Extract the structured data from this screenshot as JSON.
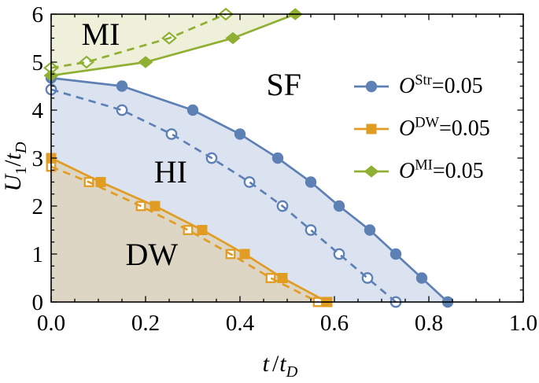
{
  "chart_data": {
    "type": "line",
    "title": "",
    "xlabel": "t/t_D",
    "ylabel": "U_1/t_D",
    "xlim": [
      0,
      1
    ],
    "ylim": [
      0,
      6
    ],
    "grid": false,
    "legend_position": "right-inside",
    "x_ticks": {
      "major": [
        0,
        0.2,
        0.4,
        0.6,
        0.8,
        1.0
      ],
      "labels": [
        "0.0",
        "0.2",
        "0.4",
        "0.6",
        "0.8",
        "1.0"
      ],
      "minor_step": 0.05
    },
    "y_ticks": {
      "major": [
        0,
        1,
        2,
        3,
        4,
        5,
        6
      ],
      "labels": [
        "0",
        "1",
        "2",
        "3",
        "4",
        "5",
        "6"
      ],
      "minor_step": 0.25
    },
    "series": [
      {
        "id": "str-solid",
        "name": "O^Str=0.05 (solid)",
        "color": "#5E81B5",
        "line": "solid",
        "marker": "circle",
        "marker_filled": true,
        "points": [
          [
            0,
            4.67
          ],
          [
            0.15,
            4.5
          ],
          [
            0.3,
            4.0
          ],
          [
            0.4,
            3.5
          ],
          [
            0.48,
            3.0
          ],
          [
            0.55,
            2.5
          ],
          [
            0.61,
            2.0
          ],
          [
            0.675,
            1.5
          ],
          [
            0.73,
            1.0
          ],
          [
            0.785,
            0.5
          ],
          [
            0.84,
            0
          ]
        ]
      },
      {
        "id": "str-dashed",
        "name": "O^Str=0.05 (dashed)",
        "color": "#5E81B5",
        "line": "dashed",
        "marker": "circle",
        "marker_filled": false,
        "points": [
          [
            0,
            4.43
          ],
          [
            0.15,
            4.0
          ],
          [
            0.255,
            3.5
          ],
          [
            0.34,
            3.0
          ],
          [
            0.42,
            2.5
          ],
          [
            0.49,
            2.0
          ],
          [
            0.55,
            1.5
          ],
          [
            0.61,
            1.0
          ],
          [
            0.67,
            0.5
          ],
          [
            0.73,
            0
          ]
        ]
      },
      {
        "id": "dw-solid",
        "name": "O^DW=0.05 (solid)",
        "color": "#E19C24",
        "line": "solid",
        "marker": "square",
        "marker_filled": true,
        "points": [
          [
            0,
            3.0
          ],
          [
            0.105,
            2.5
          ],
          [
            0.22,
            2.0
          ],
          [
            0.32,
            1.5
          ],
          [
            0.41,
            1.0
          ],
          [
            0.49,
            0.5
          ],
          [
            0.585,
            0
          ]
        ]
      },
      {
        "id": "dw-dashed",
        "name": "O^DW=0.05 (dashed)",
        "color": "#E19C24",
        "line": "dashed",
        "marker": "square",
        "marker_filled": false,
        "points": [
          [
            0,
            2.82
          ],
          [
            0.08,
            2.5
          ],
          [
            0.19,
            2.0
          ],
          [
            0.29,
            1.5
          ],
          [
            0.38,
            1.0
          ],
          [
            0.465,
            0.5
          ],
          [
            0.565,
            0
          ]
        ]
      },
      {
        "id": "mi-solid",
        "name": "O^MI=0.05 (solid)",
        "color": "#8FB032",
        "line": "solid",
        "marker": "diamond",
        "marker_filled": true,
        "points": [
          [
            0,
            4.72
          ],
          [
            0.2,
            5.0
          ],
          [
            0.385,
            5.5
          ],
          [
            0.517,
            6.0
          ]
        ]
      },
      {
        "id": "mi-dashed",
        "name": "O^MI=0.05 (dashed)",
        "color": "#8FB032",
        "line": "dashed",
        "marker": "diamond",
        "marker_filled": false,
        "points": [
          [
            0,
            4.88
          ],
          [
            0.075,
            5.0
          ],
          [
            0.25,
            5.5
          ],
          [
            0.37,
            6.0
          ]
        ]
      }
    ],
    "regions": [
      {
        "label": "MI",
        "fill": "#eef0da",
        "bounded_by": "mi-solid",
        "side": "above",
        "x": 0.105,
        "y": 5.58
      },
      {
        "label": "SF",
        "fill": "#ffffff",
        "bounded_by": null,
        "side": null,
        "x": 0.493,
        "y": 4.52
      },
      {
        "label": "HI",
        "fill": "#dce3f0",
        "bounded_by": "str-solid",
        "side": "below",
        "x": 0.253,
        "y": 2.7
      },
      {
        "label": "DW",
        "fill": "#ddd6c4",
        "bounded_by": "dw-solid",
        "side": "below",
        "x": 0.213,
        "y": 0.98
      }
    ],
    "frame_color": "#000000"
  },
  "axis": {
    "ylabel_parts": {
      "p1": "U",
      "p2": "1",
      "p3": "/",
      "p4": "t",
      "p5": "D"
    },
    "xlabel_parts": {
      "p1": "t",
      "p2": "/",
      "p3": "t",
      "p4": "D"
    }
  },
  "legend": {
    "entries": [
      {
        "symbol": "O",
        "sup": "Str",
        "eq": "=0.05",
        "color": "#5E81B5",
        "marker": "circle"
      },
      {
        "symbol": "O",
        "sup": "DW",
        "eq": "=0.05",
        "color": "#E19C24",
        "marker": "square"
      },
      {
        "symbol": "O",
        "sup": "MI",
        "eq": "=0.05",
        "color": "#8FB032",
        "marker": "diamond"
      }
    ]
  }
}
